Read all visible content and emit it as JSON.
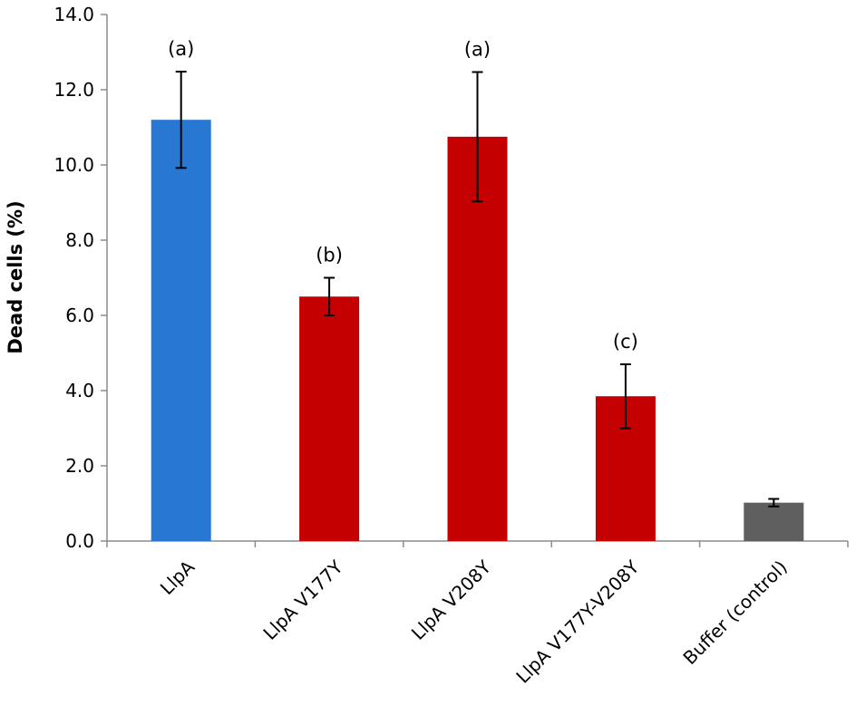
{
  "chart_data": {
    "type": "bar",
    "title": "",
    "xlabel": "",
    "ylabel": "Dead cells (%)",
    "ylim": [
      0,
      14
    ],
    "yticks": [
      "0.0",
      "2.0",
      "4.0",
      "6.0",
      "8.0",
      "10.0",
      "12.0",
      "14.0"
    ],
    "grid": false,
    "legend": "none",
    "categories": [
      "LlpA",
      "LlpA V177Y",
      "LlpA V208Y",
      "LlpA V177Y-V208Y",
      "Buffer (control)"
    ],
    "values": [
      11.2,
      6.5,
      10.75,
      3.85,
      1.02
    ],
    "errors": [
      1.28,
      0.5,
      1.72,
      0.85,
      0.1
    ],
    "significance": [
      "(a)",
      "(b)",
      "(a)",
      "(c)",
      ""
    ],
    "colors": [
      "#2777d3",
      "#c40000",
      "#c40000",
      "#c40000",
      "#5f5f5f"
    ]
  }
}
